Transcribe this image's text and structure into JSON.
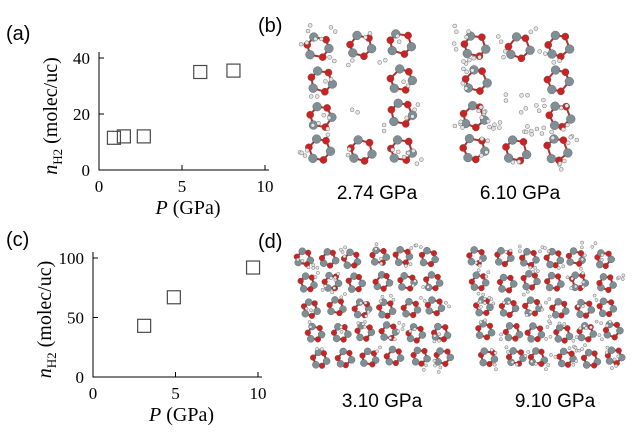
{
  "panels": {
    "a": {
      "label": "(a)"
    },
    "b": {
      "label": "(b)",
      "captions": [
        "2.74 GPa",
        "6.10 GPa"
      ]
    },
    "c": {
      "label": "(c)"
    },
    "d": {
      "label": "(d)",
      "captions": [
        "3.10 GPa",
        "9.10 GPa"
      ]
    }
  },
  "chart_data": [
    {
      "type": "scatter",
      "marker": "open-square",
      "xlabel_var": "P",
      "xlabel_unit": " (GPa)",
      "ylabel_main": "n",
      "ylabel_sub": "H2",
      "ylabel_unit": " (molec/uc)",
      "xlim": [
        0,
        10
      ],
      "ylim": [
        0,
        40
      ],
      "xticks": [
        0,
        5,
        10
      ],
      "yticks": [
        0,
        20,
        40
      ],
      "x": [
        0.9,
        1.5,
        2.7,
        6.1,
        8.1
      ],
      "y": [
        11.5,
        12.0,
        12.0,
        35.0,
        35.5
      ]
    },
    {
      "type": "scatter",
      "marker": "open-square",
      "xlabel_var": "P",
      "xlabel_unit": " (GPa)",
      "ylabel_main": "n",
      "ylabel_sub": "H2",
      "ylabel_unit": " (molec/uc)",
      "xlim": [
        0,
        10
      ],
      "ylim": [
        0,
        100
      ],
      "xticks": [
        0,
        5,
        10
      ],
      "yticks": [
        0,
        50,
        100
      ],
      "x": [
        3.1,
        4.9,
        9.7
      ],
      "y": [
        43,
        67,
        92
      ]
    }
  ],
  "colors": {
    "oxygen": "#cc2222",
    "silicon": "#7f8f96",
    "hydrogen": "#e4e4e4",
    "marker": "#4a4a4a"
  }
}
